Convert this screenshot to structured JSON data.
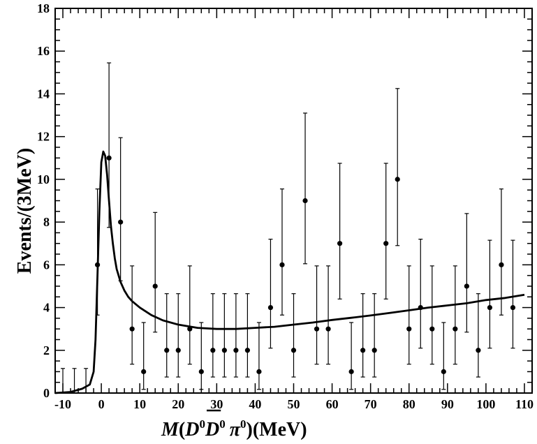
{
  "chart_data": {
    "type": "scatter",
    "title": "",
    "xlabel": "M(D⁰D̅⁰π⁰)(MeV)",
    "xlabel_parts": {
      "func": "M",
      "open": "(",
      "D1": "D",
      "sup1": "0",
      "D2": "D",
      "sup2": "0",
      "pi": "π",
      "sup3": "0",
      "close": ")",
      "unit": "(MeV)"
    },
    "ylabel": "Events/(3MeV)",
    "xlim": [
      -12,
      112
    ],
    "ylim": [
      0,
      18
    ],
    "xticks": [
      -10,
      0,
      10,
      20,
      30,
      40,
      50,
      60,
      70,
      80,
      90,
      100,
      110
    ],
    "yticks": [
      0,
      2,
      4,
      6,
      8,
      10,
      12,
      14,
      16,
      18
    ],
    "grid": false,
    "legend": "none",
    "colors": {
      "axis": "#000000",
      "points": "#000000",
      "fit_line": "#000000"
    },
    "series": [
      {
        "type": "errorbar",
        "x": [
          -10,
          -7,
          -4,
          -1,
          2,
          5,
          8,
          11,
          14,
          17,
          20,
          23,
          26,
          29,
          32,
          35,
          38,
          41,
          44,
          47,
          50,
          53,
          56,
          59,
          62,
          65,
          68,
          71,
          74,
          77,
          80,
          83,
          86,
          89,
          92,
          95,
          98,
          101,
          104,
          107
        ],
        "y": [
          0,
          0,
          0,
          6,
          11,
          8,
          3,
          1,
          5,
          2,
          2,
          3,
          1,
          2,
          2,
          2,
          2,
          1,
          4,
          6,
          2,
          9,
          3,
          3,
          7,
          1,
          2,
          2,
          7,
          10,
          3,
          4,
          3,
          1,
          3,
          5,
          2,
          4,
          6,
          4
        ],
        "err_low": [
          0,
          0,
          0,
          2.35,
          3.25,
          2.75,
          1.65,
          0.83,
          2.15,
          1.25,
          1.25,
          1.65,
          0.83,
          1.25,
          1.25,
          1.25,
          1.25,
          0.83,
          1.9,
          2.35,
          1.25,
          2.95,
          1.65,
          1.65,
          2.6,
          0.83,
          1.25,
          1.25,
          2.6,
          3.1,
          1.65,
          1.9,
          1.65,
          0.83,
          1.65,
          2.15,
          1.25,
          1.9,
          2.35,
          1.9
        ],
        "err_high": [
          1.15,
          1.15,
          1.15,
          3.55,
          4.45,
          3.95,
          2.95,
          2.3,
          3.45,
          2.65,
          2.65,
          2.95,
          2.3,
          2.65,
          2.65,
          2.65,
          2.65,
          2.3,
          3.2,
          3.55,
          2.65,
          4.1,
          2.95,
          2.95,
          3.75,
          2.3,
          2.65,
          2.65,
          3.75,
          4.25,
          2.95,
          3.2,
          2.95,
          2.3,
          2.95,
          3.4,
          2.65,
          3.15,
          3.55,
          3.15
        ]
      },
      {
        "type": "line",
        "x": [
          -12,
          -8,
          -5,
          -3,
          -2,
          -1.5,
          -1,
          -0.5,
          0,
          0.5,
          1,
          1.5,
          2,
          2.5,
          3,
          3.5,
          4,
          5,
          6,
          7,
          8,
          10,
          13,
          16,
          20,
          25,
          30,
          35,
          40,
          45,
          50,
          55,
          60,
          65,
          70,
          75,
          80,
          85,
          90,
          95,
          100,
          105,
          110
        ],
        "y": [
          0,
          0.05,
          0.2,
          0.4,
          1.0,
          2.5,
          5.5,
          8.5,
          10.8,
          11.3,
          11.1,
          10.2,
          9.0,
          7.8,
          7.0,
          6.3,
          5.8,
          5.2,
          4.8,
          4.5,
          4.3,
          4.0,
          3.65,
          3.4,
          3.2,
          3.05,
          3.0,
          3.0,
          3.05,
          3.1,
          3.2,
          3.3,
          3.42,
          3.52,
          3.63,
          3.75,
          3.87,
          4.0,
          4.1,
          4.2,
          4.35,
          4.45,
          4.6
        ]
      }
    ]
  }
}
